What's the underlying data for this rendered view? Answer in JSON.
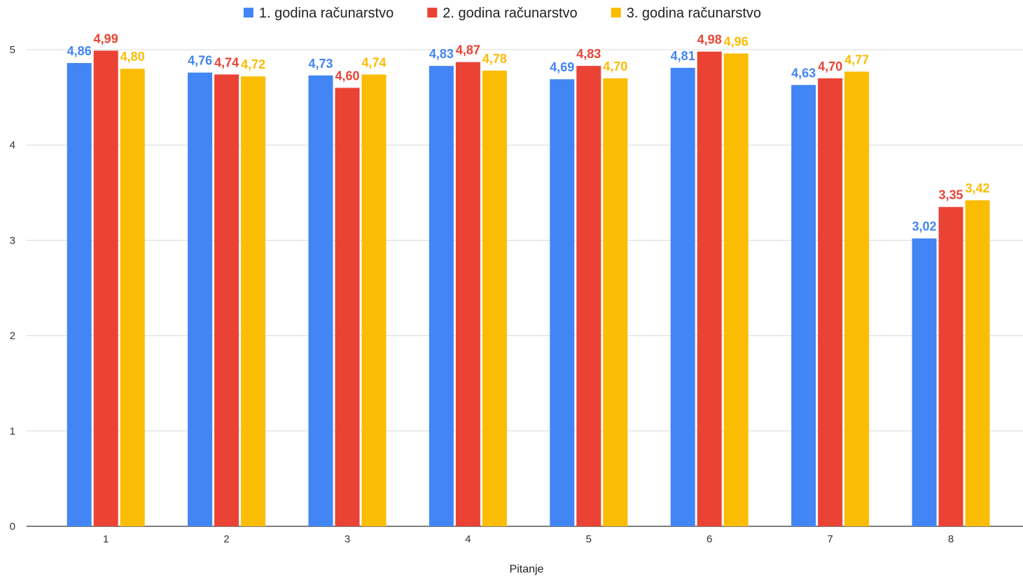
{
  "chart_data": {
    "type": "bar",
    "title": "",
    "xlabel": "Pitanje",
    "ylabel": "",
    "ylim": [
      0,
      5
    ],
    "yticks": [
      "0",
      "1",
      "2",
      "3",
      "4",
      "5"
    ],
    "grid": true,
    "legend_position": "top",
    "categories": [
      "1",
      "2",
      "3",
      "4",
      "5",
      "6",
      "7",
      "8"
    ],
    "series": [
      {
        "name": "1. godina računarstvo",
        "color": "#4285F4",
        "values": [
          4.86,
          4.76,
          4.73,
          4.83,
          4.69,
          4.81,
          4.63,
          3.02
        ],
        "labels": [
          "4,86",
          "4,76",
          "4,73",
          "4,83",
          "4,69",
          "4,81",
          "4,63",
          "3,02"
        ]
      },
      {
        "name": "2. godina računarstvo",
        "color": "#EA4335",
        "values": [
          4.99,
          4.74,
          4.6,
          4.87,
          4.83,
          4.98,
          4.7,
          3.35
        ],
        "labels": [
          "4,99",
          "4,74",
          "4,60",
          "4,87",
          "4,83",
          "4,98",
          "4,70",
          "3,35"
        ]
      },
      {
        "name": "3. godina računarstvo",
        "color": "#FBBC04",
        "values": [
          4.8,
          4.72,
          4.74,
          4.78,
          4.7,
          4.96,
          4.77,
          3.42
        ],
        "labels": [
          "4,80",
          "4,72",
          "4,74",
          "4,78",
          "4,70",
          "4,96",
          "4,77",
          "3,42"
        ]
      }
    ]
  }
}
